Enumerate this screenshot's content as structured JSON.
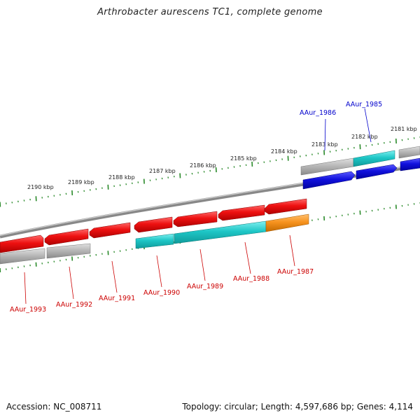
{
  "title": "Arthrobacter aurescens TC1, complete genome",
  "footer": {
    "accession": "Accession: NC_008711",
    "summary": "Topology: circular; Length: 4,597,686 bp; Genes: 4,114"
  },
  "colors": {
    "red": "#ee1111",
    "cyan": "#1ec6c6",
    "gray": "#b4b4b4",
    "blue": "#1111dd",
    "orange": "#f7931e",
    "tick": "#2a8a2a",
    "backbone": "#888888",
    "label_red": "#cc0000",
    "label_blue": "#0000cc"
  },
  "ruler_labels": [
    "2181 kbp",
    "2182 kbp",
    "2183 kbp",
    "2184 kbp",
    "2185 kbp",
    "2186 kbp",
    "2187 kbp",
    "2188 kbp",
    "2189 kbp",
    "2190 kbp"
  ],
  "gene_labels_upper": [
    "AAur_1985",
    "AAur_1986"
  ],
  "gene_labels_lower": [
    "AAur_1987",
    "AAur_1988",
    "AAur_1989",
    "AAur_1990",
    "AAur_1991",
    "AAur_1992",
    "AAur_1993"
  ]
}
